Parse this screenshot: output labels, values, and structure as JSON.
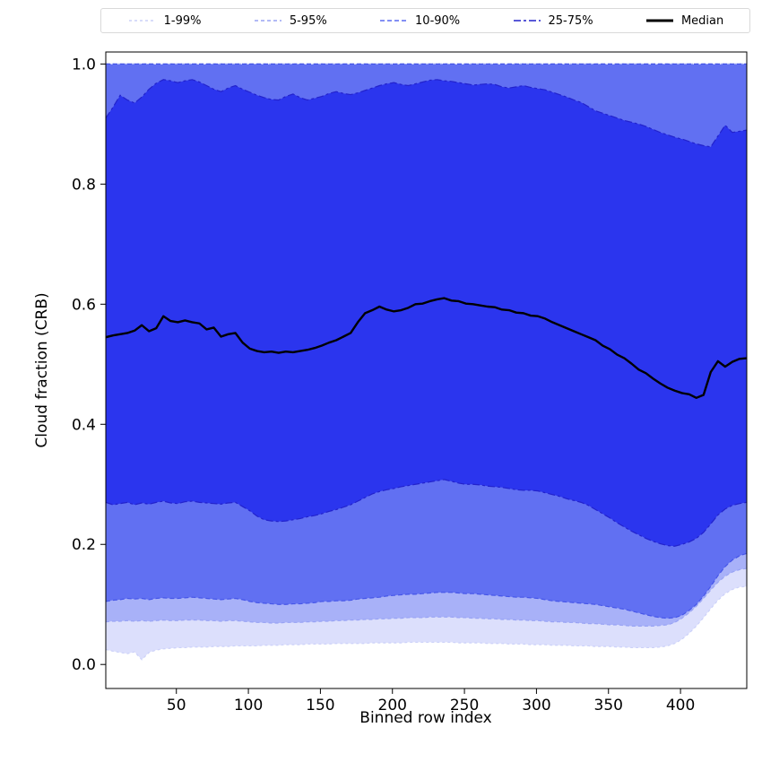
{
  "chart_data": {
    "type": "area",
    "subtype": "percentile-fan-chart-with-median",
    "title": "",
    "xlabel": "Binned row index",
    "ylabel": "Cloud fraction (CRB)",
    "xlim": [
      1,
      446
    ],
    "ylim": [
      -0.04,
      1.02
    ],
    "xticks": [
      50,
      100,
      150,
      200,
      250,
      300,
      350,
      400
    ],
    "yticks": [
      0.0,
      0.2,
      0.4,
      0.6,
      0.8,
      1.0
    ],
    "grid": false,
    "legend": {
      "position": "top-outside-horizontal",
      "items": [
        {
          "label": "1-99%",
          "color": "#ccd1f9",
          "dash": "3,3",
          "width": 1.4
        },
        {
          "label": "5-95%",
          "color": "#98a3f4",
          "dash": "4,3",
          "width": 1.4
        },
        {
          "label": "10-90%",
          "color": "#5a6af0",
          "dash": "5,3",
          "width": 1.4
        },
        {
          "label": "25-75%",
          "color": "#2222cc",
          "dash": "8,3,3,3",
          "width": 1.6
        },
        {
          "label": "Median",
          "color": "#000000",
          "dash": "",
          "width": 3
        }
      ]
    },
    "median_style": {
      "color": "#000000",
      "width": 2.4
    },
    "bands": [
      {
        "label": "1-99%",
        "lower": "p01",
        "upper": "p99",
        "fill": "#dcdffc",
        "edge": "#ccd1f9",
        "dash": "3,3"
      },
      {
        "label": "5-95%",
        "lower": "p05",
        "upper": "p95",
        "fill": "#a8b1f8",
        "edge": "#98a3f4",
        "dash": "4,3"
      },
      {
        "label": "10-90%",
        "lower": "p10",
        "upper": "p90",
        "fill": "#6170f2",
        "edge": "#4656e8",
        "dash": "5,3"
      },
      {
        "label": "25-75%",
        "lower": "p25",
        "upper": "p75",
        "fill": "#2b35ee",
        "edge": "#2222cc",
        "dash": "8,3,3,3"
      }
    ],
    "x": [
      1,
      6,
      11,
      16,
      21,
      26,
      31,
      36,
      41,
      46,
      51,
      56,
      61,
      66,
      71,
      76,
      81,
      86,
      91,
      96,
      101,
      106,
      111,
      116,
      121,
      126,
      131,
      136,
      141,
      146,
      151,
      156,
      161,
      166,
      171,
      176,
      181,
      186,
      191,
      196,
      201,
      206,
      211,
      216,
      221,
      226,
      231,
      236,
      241,
      246,
      251,
      256,
      261,
      266,
      271,
      276,
      281,
      286,
      291,
      296,
      301,
      306,
      311,
      316,
      321,
      326,
      331,
      336,
      341,
      346,
      351,
      356,
      361,
      366,
      371,
      376,
      381,
      386,
      391,
      396,
      401,
      406,
      411,
      416,
      421,
      426,
      431,
      436,
      441,
      446
    ],
    "series": {
      "median": [
        0.545,
        0.548,
        0.55,
        0.552,
        0.556,
        0.565,
        0.555,
        0.56,
        0.58,
        0.572,
        0.57,
        0.573,
        0.57,
        0.568,
        0.558,
        0.561,
        0.546,
        0.55,
        0.552,
        0.536,
        0.526,
        0.522,
        0.52,
        0.521,
        0.519,
        0.521,
        0.52,
        0.522,
        0.524,
        0.527,
        0.531,
        0.536,
        0.54,
        0.546,
        0.552,
        0.57,
        0.585,
        0.59,
        0.596,
        0.591,
        0.588,
        0.59,
        0.594,
        0.6,
        0.601,
        0.605,
        0.608,
        0.61,
        0.606,
        0.605,
        0.601,
        0.6,
        0.598,
        0.596,
        0.595,
        0.591,
        0.59,
        0.586,
        0.585,
        0.581,
        0.58,
        0.576,
        0.57,
        0.565,
        0.56,
        0.555,
        0.55,
        0.545,
        0.54,
        0.531,
        0.525,
        0.516,
        0.51,
        0.501,
        0.491,
        0.485,
        0.476,
        0.468,
        0.461,
        0.456,
        0.452,
        0.45,
        0.444,
        0.449,
        0.487,
        0.505,
        0.496,
        0.504,
        0.509,
        0.51
      ],
      "p75": [
        0.91,
        0.928,
        0.948,
        0.94,
        0.935,
        0.945,
        0.958,
        0.968,
        0.974,
        0.972,
        0.969,
        0.972,
        0.974,
        0.97,
        0.964,
        0.958,
        0.954,
        0.96,
        0.964,
        0.958,
        0.953,
        0.948,
        0.944,
        0.941,
        0.94,
        0.946,
        0.95,
        0.944,
        0.94,
        0.943,
        0.946,
        0.951,
        0.954,
        0.951,
        0.949,
        0.952,
        0.956,
        0.96,
        0.964,
        0.967,
        0.969,
        0.966,
        0.964,
        0.967,
        0.97,
        0.973,
        0.974,
        0.972,
        0.971,
        0.969,
        0.967,
        0.965,
        0.966,
        0.967,
        0.966,
        0.962,
        0.96,
        0.962,
        0.964,
        0.961,
        0.959,
        0.957,
        0.953,
        0.949,
        0.945,
        0.94,
        0.936,
        0.929,
        0.922,
        0.918,
        0.914,
        0.91,
        0.906,
        0.903,
        0.9,
        0.896,
        0.891,
        0.886,
        0.882,
        0.878,
        0.875,
        0.871,
        0.867,
        0.864,
        0.862,
        0.88,
        0.898,
        0.886,
        0.888,
        0.89
      ],
      "p25": [
        0.27,
        0.266,
        0.268,
        0.27,
        0.266,
        0.269,
        0.267,
        0.27,
        0.272,
        0.269,
        0.268,
        0.271,
        0.272,
        0.27,
        0.269,
        0.268,
        0.267,
        0.269,
        0.27,
        0.263,
        0.256,
        0.247,
        0.241,
        0.239,
        0.238,
        0.239,
        0.241,
        0.243,
        0.246,
        0.248,
        0.251,
        0.255,
        0.258,
        0.262,
        0.266,
        0.272,
        0.278,
        0.284,
        0.288,
        0.291,
        0.293,
        0.296,
        0.298,
        0.3,
        0.302,
        0.304,
        0.306,
        0.308,
        0.305,
        0.302,
        0.3,
        0.3,
        0.299,
        0.297,
        0.296,
        0.295,
        0.293,
        0.291,
        0.29,
        0.29,
        0.289,
        0.286,
        0.283,
        0.28,
        0.276,
        0.273,
        0.27,
        0.265,
        0.258,
        0.251,
        0.244,
        0.236,
        0.229,
        0.222,
        0.216,
        0.21,
        0.205,
        0.201,
        0.198,
        0.197,
        0.2,
        0.204,
        0.21,
        0.22,
        0.234,
        0.249,
        0.259,
        0.265,
        0.268,
        0.27
      ],
      "p10": [
        0.105,
        0.107,
        0.108,
        0.11,
        0.109,
        0.11,
        0.108,
        0.11,
        0.111,
        0.11,
        0.11,
        0.111,
        0.112,
        0.111,
        0.11,
        0.109,
        0.108,
        0.109,
        0.11,
        0.108,
        0.105,
        0.103,
        0.102,
        0.101,
        0.1,
        0.1,
        0.101,
        0.101,
        0.102,
        0.103,
        0.105,
        0.105,
        0.106,
        0.106,
        0.107,
        0.109,
        0.11,
        0.111,
        0.112,
        0.114,
        0.115,
        0.116,
        0.117,
        0.117,
        0.118,
        0.119,
        0.12,
        0.12,
        0.12,
        0.119,
        0.118,
        0.118,
        0.117,
        0.116,
        0.115,
        0.114,
        0.113,
        0.112,
        0.112,
        0.111,
        0.11,
        0.108,
        0.106,
        0.105,
        0.104,
        0.103,
        0.102,
        0.101,
        0.1,
        0.098,
        0.096,
        0.094,
        0.092,
        0.089,
        0.086,
        0.083,
        0.08,
        0.078,
        0.077,
        0.078,
        0.082,
        0.09,
        0.1,
        0.114,
        0.13,
        0.148,
        0.163,
        0.174,
        0.181,
        0.185
      ],
      "p05": [
        0.071,
        0.072,
        0.072,
        0.073,
        0.072,
        0.073,
        0.072,
        0.073,
        0.074,
        0.073,
        0.073,
        0.074,
        0.074,
        0.074,
        0.073,
        0.073,
        0.072,
        0.073,
        0.073,
        0.072,
        0.071,
        0.07,
        0.07,
        0.069,
        0.069,
        0.07,
        0.07,
        0.07,
        0.071,
        0.071,
        0.072,
        0.072,
        0.073,
        0.073,
        0.074,
        0.074,
        0.075,
        0.075,
        0.076,
        0.076,
        0.077,
        0.077,
        0.078,
        0.078,
        0.078,
        0.079,
        0.079,
        0.079,
        0.079,
        0.078,
        0.078,
        0.077,
        0.077,
        0.076,
        0.076,
        0.075,
        0.075,
        0.074,
        0.074,
        0.073,
        0.073,
        0.072,
        0.071,
        0.071,
        0.07,
        0.07,
        0.069,
        0.068,
        0.068,
        0.067,
        0.066,
        0.066,
        0.065,
        0.064,
        0.064,
        0.064,
        0.064,
        0.065,
        0.066,
        0.07,
        0.077,
        0.086,
        0.097,
        0.11,
        0.124,
        0.137,
        0.147,
        0.154,
        0.158,
        0.16
      ],
      "p01": [
        0.025,
        0.022,
        0.02,
        0.018,
        0.021,
        0.008,
        0.02,
        0.024,
        0.026,
        0.027,
        0.028,
        0.028,
        0.029,
        0.029,
        0.029,
        0.03,
        0.03,
        0.03,
        0.031,
        0.031,
        0.031,
        0.031,
        0.032,
        0.032,
        0.032,
        0.033,
        0.033,
        0.033,
        0.034,
        0.034,
        0.034,
        0.034,
        0.035,
        0.035,
        0.035,
        0.035,
        0.035,
        0.036,
        0.036,
        0.036,
        0.036,
        0.036,
        0.037,
        0.037,
        0.037,
        0.037,
        0.037,
        0.037,
        0.037,
        0.036,
        0.036,
        0.036,
        0.036,
        0.035,
        0.035,
        0.035,
        0.034,
        0.034,
        0.034,
        0.033,
        0.033,
        0.033,
        0.032,
        0.032,
        0.032,
        0.031,
        0.031,
        0.031,
        0.03,
        0.03,
        0.03,
        0.029,
        0.029,
        0.028,
        0.028,
        0.028,
        0.028,
        0.029,
        0.031,
        0.035,
        0.042,
        0.052,
        0.064,
        0.078,
        0.093,
        0.107,
        0.118,
        0.125,
        0.129,
        0.13
      ],
      "p90": 1.0,
      "p95": 1.0,
      "p99": 1.0
    }
  }
}
